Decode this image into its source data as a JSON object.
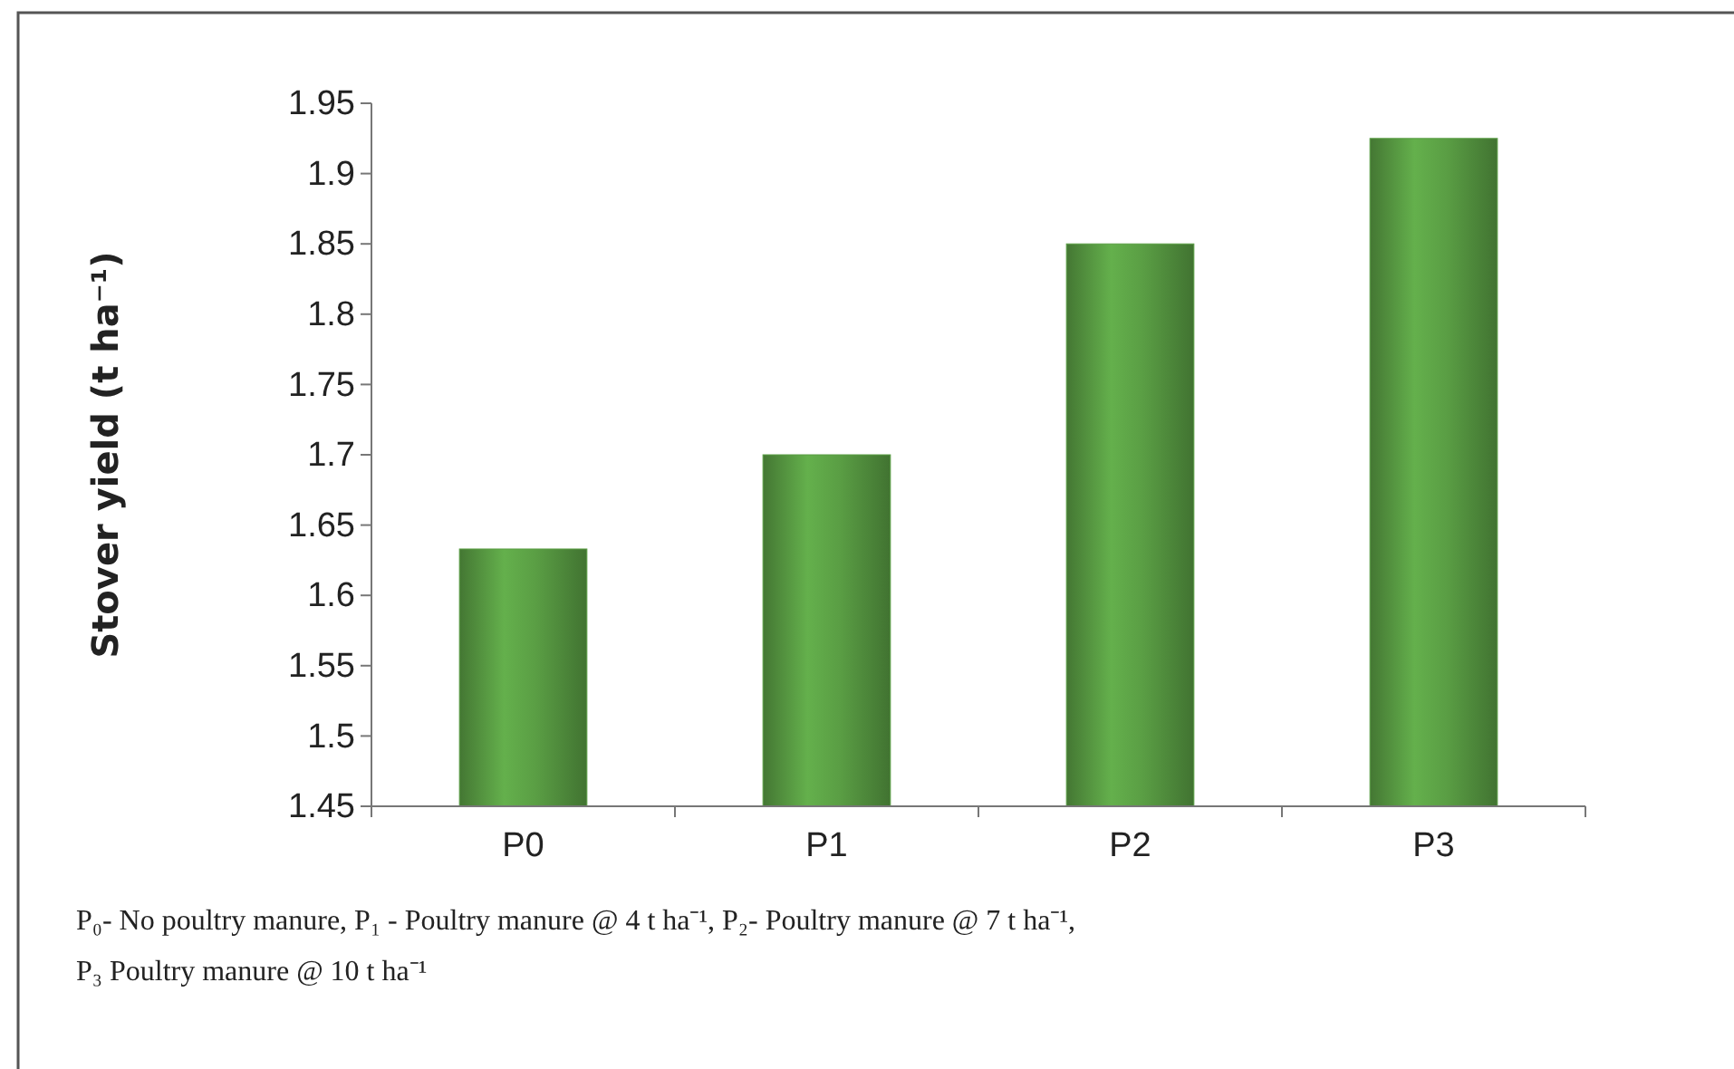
{
  "chart_data": {
    "type": "bar",
    "ylabel": "Stover yield (t ha⁻¹)",
    "categories": [
      "P0",
      "P1",
      "P2",
      "P3"
    ],
    "values": [
      1.633,
      1.7,
      1.85,
      1.925
    ],
    "color": "#5a9e44",
    "ylim": [
      1.45,
      1.95
    ],
    "yticks": [
      1.45,
      1.5,
      1.55,
      1.6,
      1.65,
      1.7,
      1.75,
      1.8,
      1.85,
      1.9,
      1.95
    ],
    "grid": false,
    "annotations": [
      "P₀- No poultry manure, P₁ - Poultry manure @ 4 t ha⁻¹, P₂-  Poultry manure @ 7 t ha⁻¹,",
      "P₃ Poultry manure @ 10 t ha⁻¹"
    ]
  }
}
